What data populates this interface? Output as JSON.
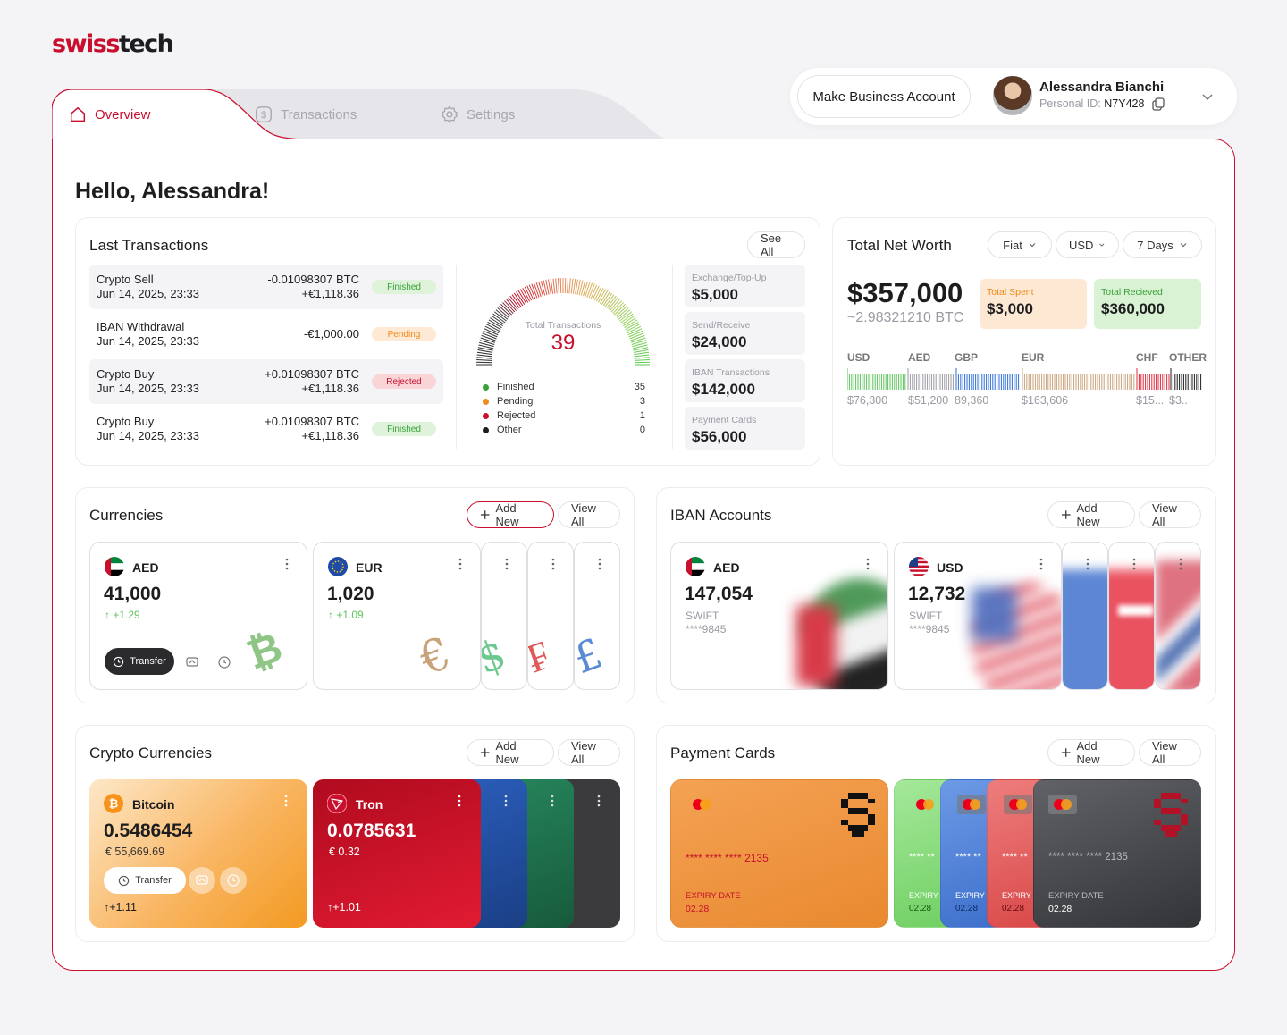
{
  "brand": {
    "part1": "swiss",
    "part2": "tech"
  },
  "tabs": [
    {
      "label": "Overview",
      "icon": "home-icon",
      "active": true
    },
    {
      "label": "Transactions",
      "icon": "dollar-icon",
      "active": false
    },
    {
      "label": "Settings",
      "icon": "gear-icon",
      "active": false
    }
  ],
  "header": {
    "business_button": "Make Business Account",
    "user_name": "Alessandra Bianchi",
    "personal_id_label": "Personal ID:",
    "personal_id_value": "N7Y428"
  },
  "greeting": "Hello, Alessandra!",
  "last_transactions": {
    "title": "Last Transactions",
    "see_all": "See All",
    "rows": [
      {
        "name": "Crypto Sell",
        "date": "Jun 14, 2025, 23:33",
        "v1": "-0.01098307 BTC",
        "v2": "+€1,118.36",
        "status": "Finished"
      },
      {
        "name": "IBAN Withdrawal",
        "date": "Jun 14, 2025, 23:33",
        "v1": "",
        "v2": "-€1,000.00",
        "status": "Pending"
      },
      {
        "name": "Crypto Buy",
        "date": "Jun 14, 2025, 23:33",
        "v1": "+0.01098307 BTC",
        "v2": "+€1,118.36",
        "status": "Rejected"
      },
      {
        "name": "Crypto Buy",
        "date": "Jun 14, 2025, 23:33",
        "v1": "+0.01098307 BTC",
        "v2": "+€1,118.36",
        "status": "Finished"
      }
    ],
    "gauge": {
      "label": "Total Transactions",
      "value": "39"
    },
    "legend": [
      {
        "label": "Finished",
        "count": "35",
        "color": "#3aa13a"
      },
      {
        "label": "Pending",
        "count": "3",
        "color": "#f08a1c"
      },
      {
        "label": "Rejected",
        "count": "1",
        "color": "#c8102e"
      },
      {
        "label": "Other",
        "count": "0",
        "color": "#1d1d1f"
      }
    ],
    "stats": [
      {
        "label": "Exchange/Top-Up",
        "value": "$5,000"
      },
      {
        "label": "Send/Receive",
        "value": "$24,000"
      },
      {
        "label": "IBAN Transactions",
        "value": "$142,000"
      },
      {
        "label": "Payment Cards",
        "value": "$56,000"
      }
    ]
  },
  "net_worth": {
    "title": "Total Net Worth",
    "filters": [
      "Fiat",
      "USD",
      "7 Days"
    ],
    "value": "$357,000",
    "btc": "~2.98321210 BTC",
    "spent_label": "Total Spent",
    "spent_value": "$3,000",
    "received_label": "Total Recieved",
    "received_value": "$360,000",
    "currencies": [
      {
        "code": "USD",
        "amount": "$76,300",
        "color": "#5cc45a"
      },
      {
        "code": "AED",
        "amount": "$51,200",
        "color": "#9a9aa3"
      },
      {
        "code": "GBP",
        "amount": "89,360",
        "color": "#2e6fd8"
      },
      {
        "code": "EUR",
        "amount": "$163,606",
        "color": "#c9a27a"
      },
      {
        "code": "CHF",
        "amount": "$15...",
        "color": "#e02c3c"
      },
      {
        "code": "OTHER",
        "amount": "$3..",
        "color": "#1d1d1f"
      }
    ]
  },
  "currencies": {
    "title": "Currencies",
    "add_new": "Add New",
    "view_all": "View All",
    "cards": [
      {
        "code": "AED",
        "amount": "41,000",
        "change": "+1.29"
      },
      {
        "code": "EUR",
        "amount": "1,020",
        "change": "+1.09"
      }
    ],
    "transfer": "Transfer"
  },
  "iban": {
    "title": "IBAN Accounts",
    "add_new": "Add New",
    "view_all": "View All",
    "cards": [
      {
        "code": "AED",
        "amount": "147,054",
        "type": "SWIFT",
        "number": "****9845"
      },
      {
        "code": "USD",
        "amount": "12,732",
        "type": "SWIFT",
        "number": "****9845"
      }
    ]
  },
  "crypto": {
    "title": "Crypto Currencies",
    "add_new": "Add New",
    "view_all": "View All",
    "cards": [
      {
        "name": "Bitcoin",
        "amount": "0.5486454",
        "fiat": "€ 55,669.69",
        "change": "+1.11"
      },
      {
        "name": "Tron",
        "amount": "0.0785631",
        "fiat": "€ 0.32",
        "change": "+1.01"
      }
    ],
    "transfer": "Transfer"
  },
  "payment_cards": {
    "title": "Payment Cards",
    "add_new": "Add New",
    "view_all": "View All",
    "main_number_prefix": "**** **** ****",
    "main_number_suffix": "2135",
    "expiry_label": "EXPIRY DATE",
    "expiry": "02.28",
    "stack_number": "**** **** **** 2135",
    "stack_short": "**** **",
    "stack_exp_short": "EXPIRY D",
    "colors": {
      "orange": "#ef8f2e",
      "green": "#8fdc84",
      "blue": "#4f86d8",
      "red": "#e05a5a",
      "grey": "#4a4b50"
    }
  }
}
